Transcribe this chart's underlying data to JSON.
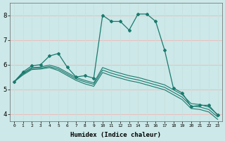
{
  "xlabel": "Humidex (Indice chaleur)",
  "xlim": [
    -0.5,
    23.5
  ],
  "ylim": [
    3.7,
    8.5
  ],
  "yticks": [
    4,
    5,
    6,
    7,
    8
  ],
  "xticks": [
    0,
    1,
    2,
    3,
    4,
    5,
    6,
    7,
    8,
    9,
    10,
    11,
    12,
    13,
    14,
    15,
    16,
    17,
    18,
    19,
    20,
    21,
    22,
    23
  ],
  "bg_color": "#cce8e8",
  "grid_color_h": "#f0b8b8",
  "grid_color_v": "#c8e0e0",
  "line_color": "#1a7a6e",
  "line1_x": [
    0,
    1,
    2,
    3,
    4,
    5,
    6,
    7,
    8,
    9,
    10,
    11,
    12,
    13,
    14,
    15,
    16,
    17,
    18,
    19,
    20,
    21,
    22,
    23
  ],
  "line1_y": [
    5.3,
    5.7,
    5.95,
    6.0,
    6.35,
    6.45,
    5.9,
    5.5,
    5.55,
    5.45,
    8.0,
    7.75,
    7.75,
    7.4,
    8.05,
    8.05,
    7.75,
    6.6,
    5.05,
    4.85,
    4.3,
    4.35,
    4.35,
    3.95
  ],
  "line2_x": [
    0,
    1,
    2,
    3,
    4,
    5,
    6,
    7,
    8,
    9,
    10,
    11,
    12,
    13,
    14,
    15,
    16,
    17,
    18,
    19,
    20,
    21,
    22,
    23
  ],
  "line2_y": [
    5.3,
    5.65,
    5.88,
    5.9,
    5.98,
    5.88,
    5.68,
    5.48,
    5.36,
    5.26,
    5.88,
    5.75,
    5.65,
    5.55,
    5.48,
    5.38,
    5.28,
    5.18,
    4.98,
    4.78,
    4.42,
    4.38,
    4.28,
    3.98
  ],
  "line3_x": [
    0,
    1,
    2,
    3,
    4,
    5,
    6,
    7,
    8,
    9,
    10,
    11,
    12,
    13,
    14,
    15,
    16,
    17,
    18,
    19,
    20,
    21,
    22,
    23
  ],
  "line3_y": [
    5.3,
    5.62,
    5.84,
    5.86,
    5.92,
    5.82,
    5.62,
    5.42,
    5.3,
    5.2,
    5.78,
    5.65,
    5.55,
    5.45,
    5.38,
    5.28,
    5.18,
    5.08,
    4.88,
    4.68,
    4.32,
    4.28,
    4.18,
    3.88
  ],
  "line4_x": [
    0,
    1,
    2,
    3,
    4,
    5,
    6,
    7,
    8,
    9,
    10,
    11,
    12,
    13,
    14,
    15,
    16,
    17,
    18,
    19,
    20,
    21,
    22,
    23
  ],
  "line4_y": [
    5.3,
    5.58,
    5.8,
    5.82,
    5.88,
    5.76,
    5.56,
    5.36,
    5.22,
    5.12,
    5.68,
    5.55,
    5.45,
    5.35,
    5.28,
    5.18,
    5.08,
    4.98,
    4.78,
    4.58,
    4.22,
    4.18,
    4.08,
    3.78
  ]
}
